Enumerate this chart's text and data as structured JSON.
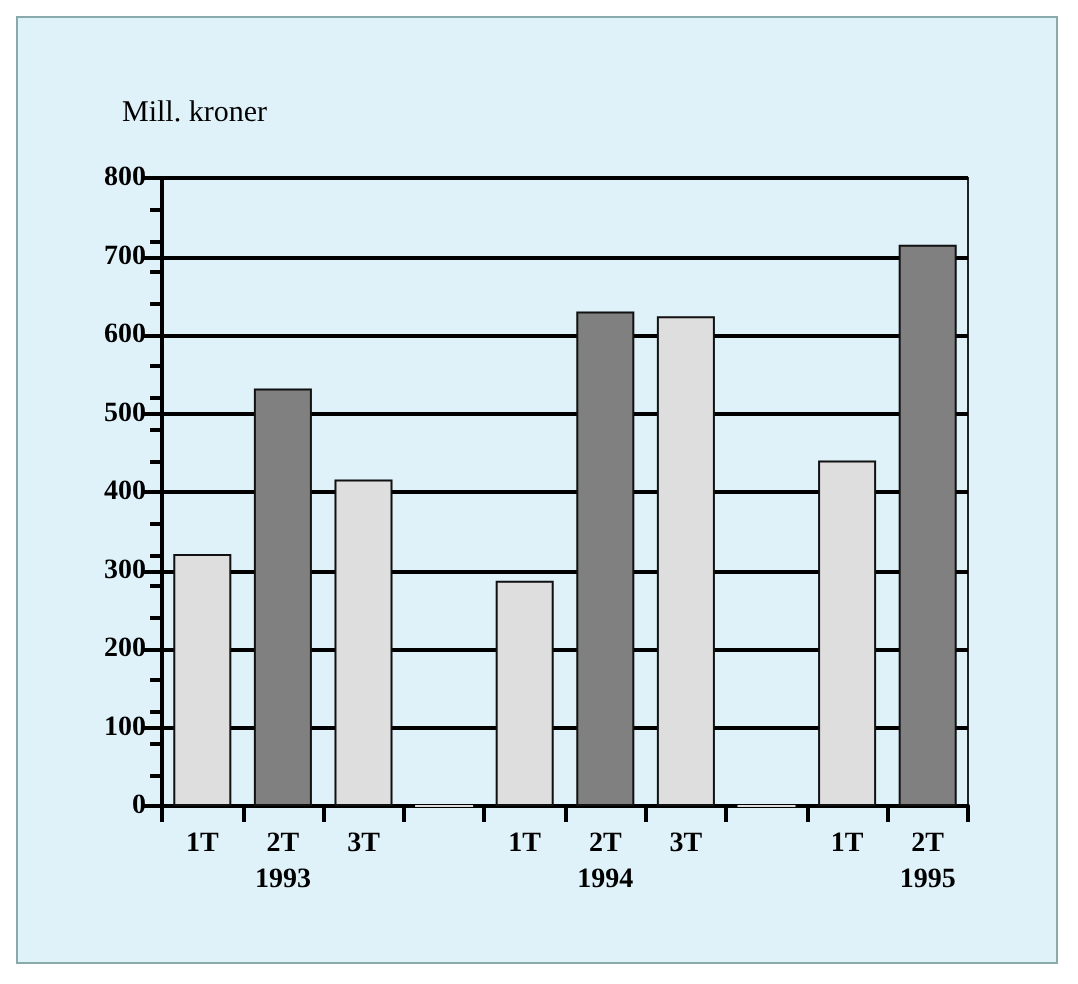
{
  "chart_data": {
    "type": "bar",
    "ylabel": "Mill. kroner",
    "categories": [
      "1T",
      "2T\n1993",
      "3T",
      null,
      "1T",
      "2T\n1994",
      "3T",
      null,
      "1T",
      "2T\n1995"
    ],
    "values": [
      321,
      532,
      416,
      0,
      287,
      630,
      624,
      0,
      440,
      715
    ],
    "colors": [
      "#dedede",
      "#808080",
      "#dedede",
      "#dedede",
      "#dedede",
      "#808080",
      "#dedede",
      "#dedede",
      "#dedede",
      "#808080"
    ],
    "ylim": [
      0,
      800
    ],
    "yticks": [
      0,
      100,
      200,
      300,
      400,
      500,
      600,
      700,
      800
    ],
    "grid": "y"
  }
}
